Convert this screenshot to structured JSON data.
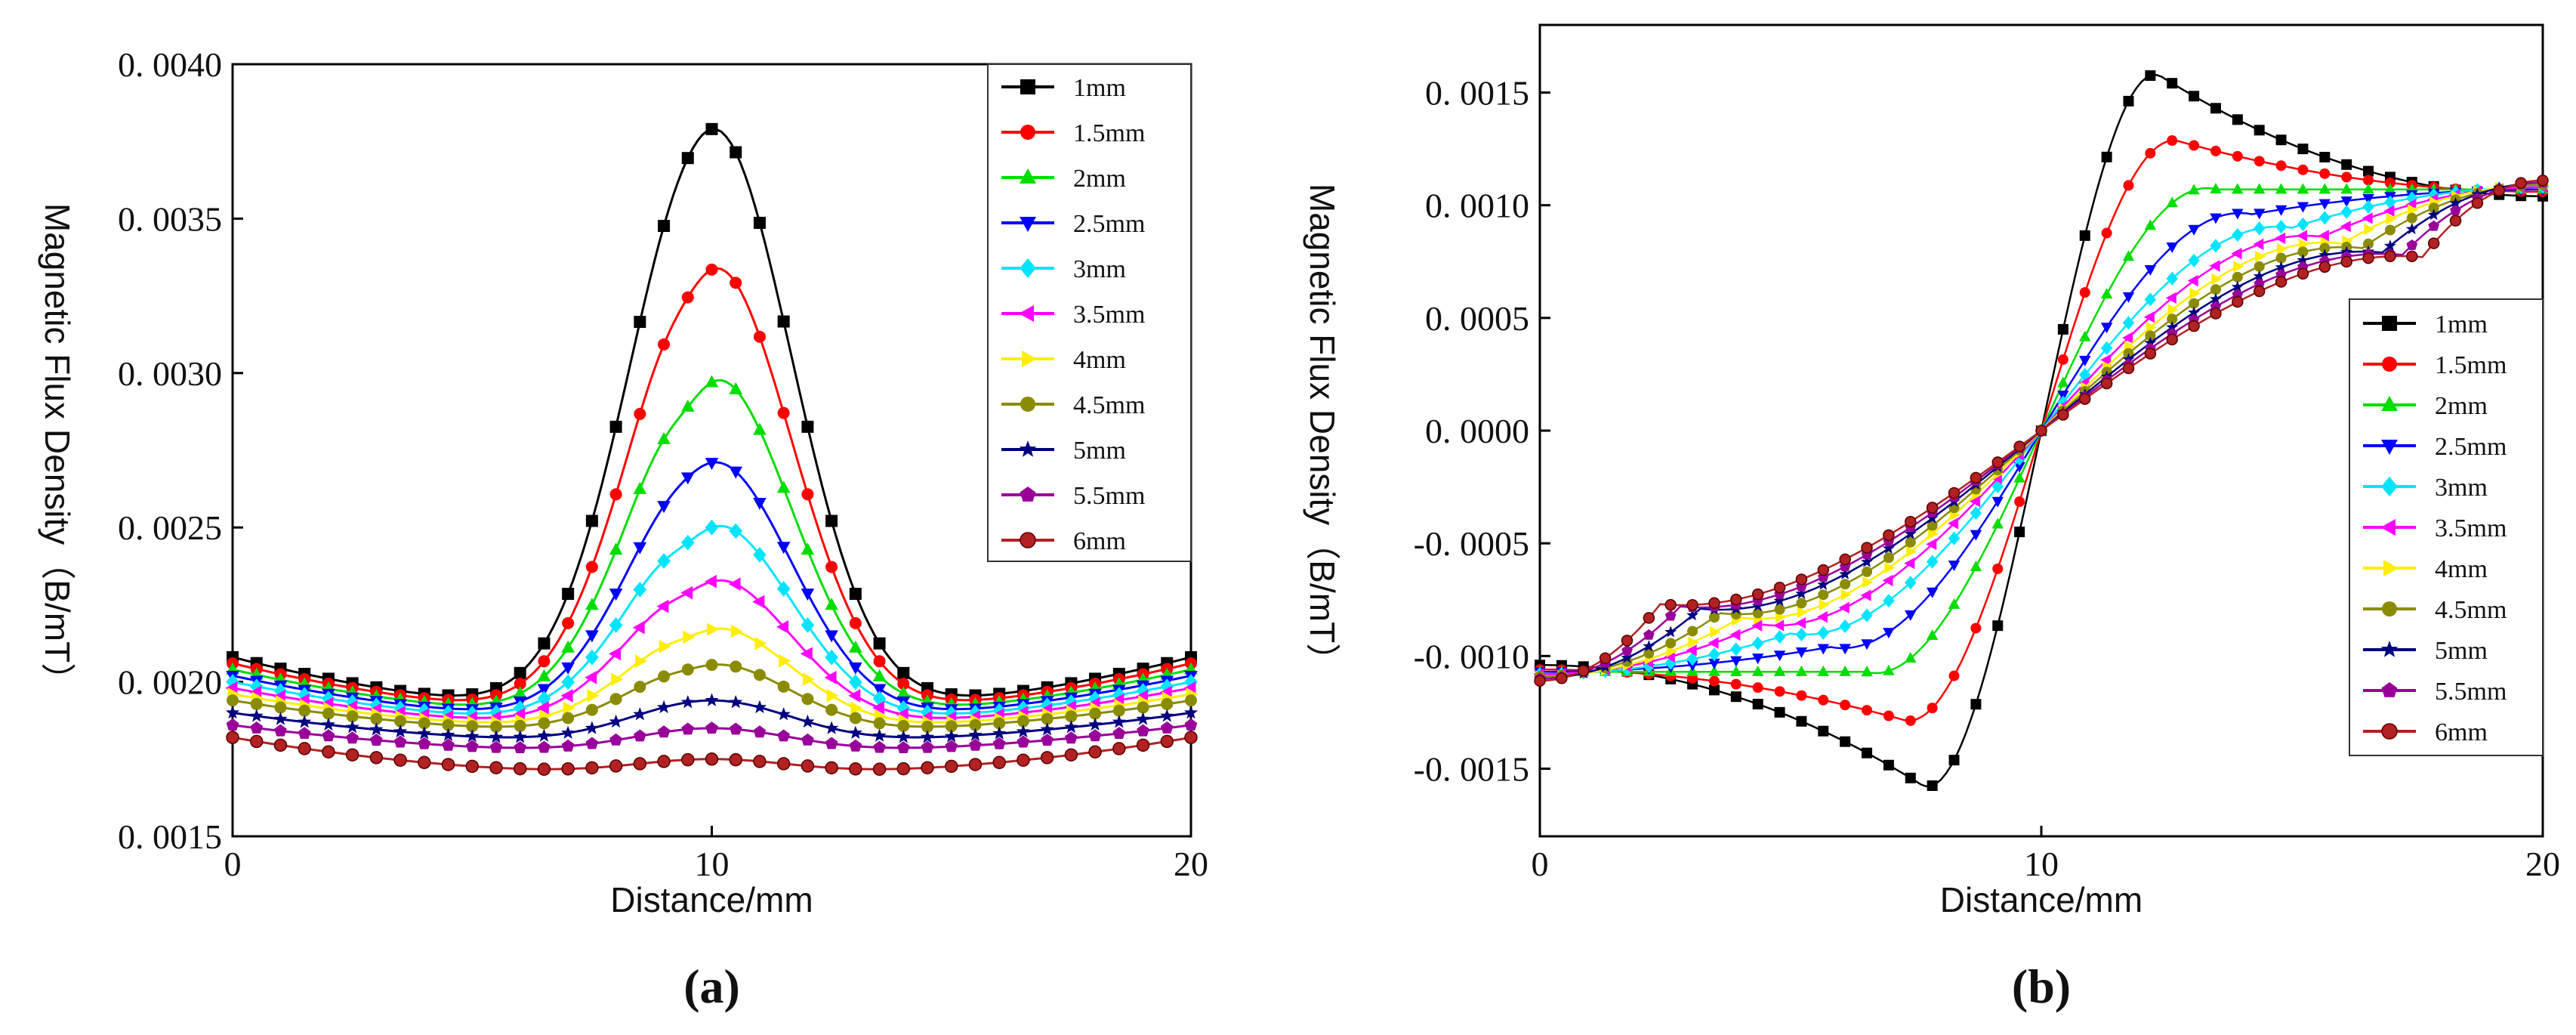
{
  "chart_data": [
    {
      "type": "line",
      "panel": "a",
      "panel_label": "(a)",
      "xlabel": "Distance/mm",
      "ylabel": "Magnetic Flux Density（B/mT）",
      "xlim": [
        0,
        20
      ],
      "ylim": [
        0.0015,
        0.004
      ],
      "xticks": [
        0,
        10,
        20
      ],
      "xtick_labels": [
        "0",
        "10",
        "20"
      ],
      "yticks": [
        0.0015,
        0.002,
        0.0025,
        0.003,
        0.0035,
        0.004
      ],
      "ytick_labels": [
        "0. 0015",
        "0. 0020",
        "0. 0025",
        "0. 0030",
        "0. 0035",
        "0. 0040"
      ],
      "grid": false,
      "legend_position": "top-right",
      "series": [
        {
          "name": "1mm",
          "color": "#000000",
          "marker": "square",
          "peak": 0.0038,
          "edge": 0.00208,
          "min": 0.0019,
          "dip": 2e-05
        },
        {
          "name": "1.5mm",
          "color": "#ff0000",
          "marker": "circle",
          "peak": 0.00336,
          "edge": 0.00206,
          "min": 0.00189,
          "dip": 5e-05
        },
        {
          "name": "2mm",
          "color": "#00dd00",
          "marker": "triangle-up",
          "peak": 0.003,
          "edge": 0.00204,
          "min": 0.00188,
          "dip": 6e-05
        },
        {
          "name": "2.5mm",
          "color": "#0000ff",
          "marker": "triangle-down",
          "peak": 0.00272,
          "edge": 0.00202,
          "min": 0.00187,
          "dip": 2e-05
        },
        {
          "name": "3mm",
          "color": "#00e5ff",
          "marker": "diamond",
          "peak": 0.00252,
          "edge": 0.002,
          "min": 0.00186,
          "dip": 4e-05
        },
        {
          "name": "3.5mm",
          "color": "#ff00ff",
          "marker": "triangle-left",
          "peak": 0.00234,
          "edge": 0.00198,
          "min": 0.00185,
          "dip": 3e-05
        },
        {
          "name": "4mm",
          "color": "#ffee00",
          "marker": "triangle-right",
          "peak": 0.00218,
          "edge": 0.00196,
          "min": 0.00184,
          "dip": 2e-05
        },
        {
          "name": "4.5mm",
          "color": "#8b8b00",
          "marker": "circle",
          "peak": 0.00206,
          "edge": 0.00194,
          "min": 0.00183,
          "dip": 1e-05
        },
        {
          "name": "5mm",
          "color": "#000080",
          "marker": "star",
          "peak": 0.00194,
          "edge": 0.0019,
          "min": 0.0018,
          "dip": 0.0
        },
        {
          "name": "5.5mm",
          "color": "#990099",
          "marker": "pentagon",
          "peak": 0.00185,
          "edge": 0.00186,
          "min": 0.00177,
          "dip": 0.0
        },
        {
          "name": "6mm",
          "color": "#b22222",
          "marker": "circle-dot",
          "peak": 0.00175,
          "edge": 0.00182,
          "min": 0.0017,
          "dip": 0.0
        }
      ]
    },
    {
      "type": "line",
      "panel": "b",
      "panel_label": "(b)",
      "xlabel": "Distance/mm",
      "ylabel": "Magnetic Flux Density（B/mT）",
      "xlim": [
        0,
        20
      ],
      "ylim": [
        -0.0018,
        0.0018
      ],
      "xticks": [
        0,
        10,
        20
      ],
      "xtick_labels": [
        "0",
        "10",
        "20"
      ],
      "yticks": [
        -0.0015,
        -0.001,
        -0.0005,
        0.0,
        0.0005,
        0.001,
        0.0015
      ],
      "ytick_labels": [
        "-0. 0015",
        "-0. 0010",
        "-0. 0005",
        "0. 0000",
        "0. 0005",
        "0. 0010",
        "0. 0015"
      ],
      "grid": false,
      "legend_position": "right",
      "series": [
        {
          "name": "1mm",
          "color": "#000000",
          "marker": "square",
          "peak": 0.00157,
          "peak_x": 12.4,
          "end": 0.00104
        },
        {
          "name": "1.5mm",
          "color": "#ff0000",
          "marker": "circle",
          "peak": 0.00128,
          "peak_x": 12.8,
          "end": 0.00106
        },
        {
          "name": "2mm",
          "color": "#00dd00",
          "marker": "triangle-up",
          "peak": 0.00107,
          "peak_x": 13.5,
          "end": 0.00107
        },
        {
          "name": "2.5mm",
          "color": "#0000ff",
          "marker": "triangle-down",
          "peak": 0.00096,
          "peak_x": 14.2,
          "end": 0.00107
        },
        {
          "name": "3mm",
          "color": "#00e5ff",
          "marker": "diamond",
          "peak": 0.0009,
          "peak_x": 15.0,
          "end": 0.00108
        },
        {
          "name": "3.5mm",
          "color": "#ff00ff",
          "marker": "triangle-left",
          "peak": 0.00086,
          "peak_x": 15.6,
          "end": 0.00108
        },
        {
          "name": "4mm",
          "color": "#ffee00",
          "marker": "triangle-right",
          "peak": 0.00083,
          "peak_x": 16.0,
          "end": 0.00109
        },
        {
          "name": "4.5mm",
          "color": "#8b8b00",
          "marker": "circle",
          "peak": 0.00081,
          "peak_x": 16.4,
          "end": 0.00109
        },
        {
          "name": "5mm",
          "color": "#000080",
          "marker": "star",
          "peak": 0.00079,
          "peak_x": 16.8,
          "end": 0.0011
        },
        {
          "name": "5.5mm",
          "color": "#990099",
          "marker": "pentagon",
          "peak": 0.00078,
          "peak_x": 17.2,
          "end": 0.0011
        },
        {
          "name": "6mm",
          "color": "#b22222",
          "marker": "circle-dot",
          "peak": 0.00077,
          "peak_x": 17.6,
          "end": 0.00111
        }
      ]
    }
  ]
}
